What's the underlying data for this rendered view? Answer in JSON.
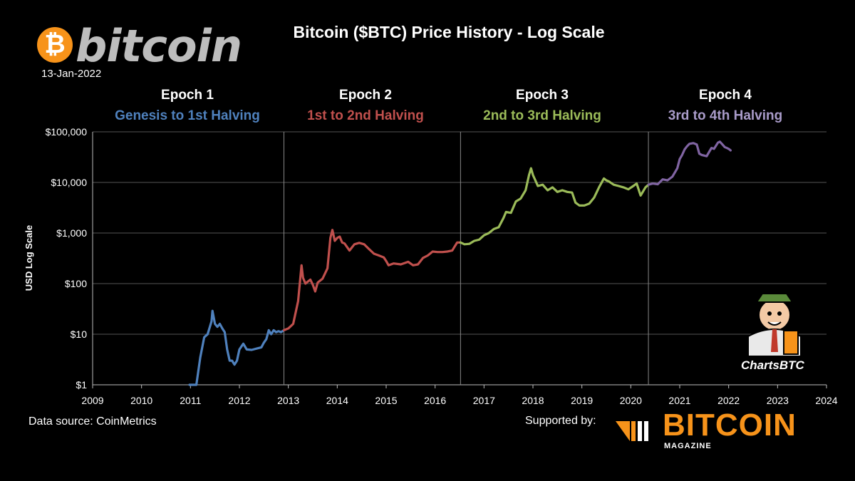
{
  "header": {
    "logo_symbol": "₿",
    "logo_word": "bitcoin",
    "date": "13-Jan-2022",
    "title": "Bitcoin ($BTC) Price History - Log Scale"
  },
  "epochs": [
    {
      "title": "Epoch 1",
      "subtitle": "Genesis to 1st Halving",
      "color": "#4f81bd"
    },
    {
      "title": "Epoch 2",
      "subtitle": "1st  to 2nd Halving",
      "color": "#c0504d"
    },
    {
      "title": "Epoch 3",
      "subtitle": "2nd to 3rd Halving",
      "color": "#9bbb59"
    },
    {
      "title": "Epoch 4",
      "subtitle": "3rd to 4th Halving",
      "color": "#8064a2"
    }
  ],
  "footer": {
    "source": "Data source: CoinMetrics",
    "supported": "Supported by:",
    "magazine_word": "BITCOIN",
    "magazine_sub": "MAGAZINE",
    "mascot_label": "ChartsBTC"
  },
  "chart_data": {
    "type": "line",
    "title": "Bitcoin ($BTC) Price History - Log Scale",
    "xlabel": "",
    "ylabel": "USD Log Scale",
    "y_scale": "log",
    "ylim": [
      1,
      100000
    ],
    "xlim": [
      2009,
      2024
    ],
    "x_ticks": [
      "2009",
      "2010",
      "2011",
      "2012",
      "2013",
      "2014",
      "2015",
      "2016",
      "2017",
      "2018",
      "2019",
      "2020",
      "2021",
      "2022",
      "2023",
      "2024"
    ],
    "y_ticks": [
      "$1",
      "$10",
      "$100",
      "$1,000",
      "$10,000",
      "$100,000"
    ],
    "grid": true,
    "halvings": [
      2012.91,
      2016.52,
      2020.36
    ],
    "series": [
      {
        "epoch": 1,
        "color": "#4f81bd",
        "x": [
          2010.98,
          2011.05,
          2011.12,
          2011.2,
          2011.28,
          2011.35,
          2011.43,
          2011.45,
          2011.5,
          2011.55,
          2011.6,
          2011.65,
          2011.7,
          2011.75,
          2011.8,
          2011.85,
          2011.9,
          2011.95,
          2012.0,
          2012.08,
          2012.15,
          2012.25,
          2012.35,
          2012.45,
          2012.5,
          2012.55,
          2012.6,
          2012.65,
          2012.7,
          2012.75,
          2012.8,
          2012.85,
          2012.91
        ],
        "y": [
          1.0,
          0.9,
          1.0,
          3.5,
          8.7,
          10,
          18,
          29,
          16,
          14,
          16,
          13,
          11,
          5,
          3,
          3,
          2.5,
          3,
          5,
          6.5,
          5,
          4.9,
          5.2,
          5.5,
          6.8,
          8,
          12,
          10,
          12,
          11,
          11.5,
          11,
          12
        ]
      },
      {
        "epoch": 2,
        "color": "#c0504d",
        "x": [
          2012.91,
          2013.0,
          2013.1,
          2013.2,
          2013.27,
          2013.3,
          2013.35,
          2013.4,
          2013.45,
          2013.5,
          2013.55,
          2013.6,
          2013.7,
          2013.8,
          2013.86,
          2013.9,
          2013.95,
          2014.0,
          2014.05,
          2014.1,
          2014.15,
          2014.25,
          2014.35,
          2014.45,
          2014.55,
          2014.65,
          2014.75,
          2014.85,
          2014.95,
          2015.0,
          2015.05,
          2015.15,
          2015.3,
          2015.45,
          2015.55,
          2015.65,
          2015.75,
          2015.85,
          2015.95,
          2016.05,
          2016.15,
          2016.25,
          2016.35,
          2016.45,
          2016.52
        ],
        "y": [
          12,
          13,
          16,
          45,
          230,
          130,
          100,
          110,
          120,
          95,
          70,
          105,
          125,
          200,
          800,
          1150,
          700,
          800,
          850,
          650,
          620,
          450,
          600,
          640,
          600,
          480,
          390,
          360,
          330,
          280,
          230,
          250,
          240,
          270,
          230,
          240,
          320,
          360,
          430,
          420,
          420,
          430,
          450,
          650,
          650
        ]
      },
      {
        "epoch": 3,
        "color": "#9bbb59",
        "x": [
          2016.52,
          2016.6,
          2016.7,
          2016.8,
          2016.9,
          2017.0,
          2017.1,
          2017.2,
          2017.3,
          2017.4,
          2017.45,
          2017.55,
          2017.65,
          2017.75,
          2017.85,
          2017.92,
          2017.96,
          2018.0,
          2018.05,
          2018.1,
          2018.2,
          2018.3,
          2018.4,
          2018.5,
          2018.6,
          2018.7,
          2018.8,
          2018.87,
          2018.95,
          2019.05,
          2019.15,
          2019.25,
          2019.35,
          2019.45,
          2019.5,
          2019.55,
          2019.65,
          2019.75,
          2019.85,
          2019.95,
          2020.05,
          2020.12,
          2020.2,
          2020.3,
          2020.36
        ],
        "y": [
          650,
          600,
          610,
          700,
          740,
          900,
          1000,
          1200,
          1300,
          2000,
          2600,
          2500,
          4200,
          4800,
          7000,
          14000,
          19000,
          14000,
          11000,
          8500,
          9000,
          7000,
          8000,
          6500,
          7000,
          6500,
          6300,
          4000,
          3500,
          3500,
          3800,
          5000,
          8000,
          12000,
          11000,
          10500,
          9000,
          8500,
          8000,
          7300,
          8500,
          9500,
          5500,
          8000,
          9000
        ]
      },
      {
        "epoch": 4,
        "color": "#8064a2",
        "x": [
          2020.36,
          2020.45,
          2020.55,
          2020.65,
          2020.75,
          2020.85,
          2020.95,
          2021.0,
          2021.05,
          2021.1,
          2021.15,
          2021.2,
          2021.28,
          2021.35,
          2021.4,
          2021.45,
          2021.55,
          2021.6,
          2021.65,
          2021.7,
          2021.78,
          2021.82,
          2021.86,
          2021.92,
          2021.96,
          2022.0,
          2022.04
        ],
        "y": [
          9000,
          9500,
          9200,
          11500,
          11000,
          13000,
          19000,
          29000,
          35000,
          45000,
          52000,
          58000,
          60000,
          56000,
          37000,
          35000,
          33000,
          40000,
          48000,
          46000,
          61000,
          64000,
          58000,
          50000,
          48000,
          46000,
          43000
        ]
      }
    ]
  }
}
